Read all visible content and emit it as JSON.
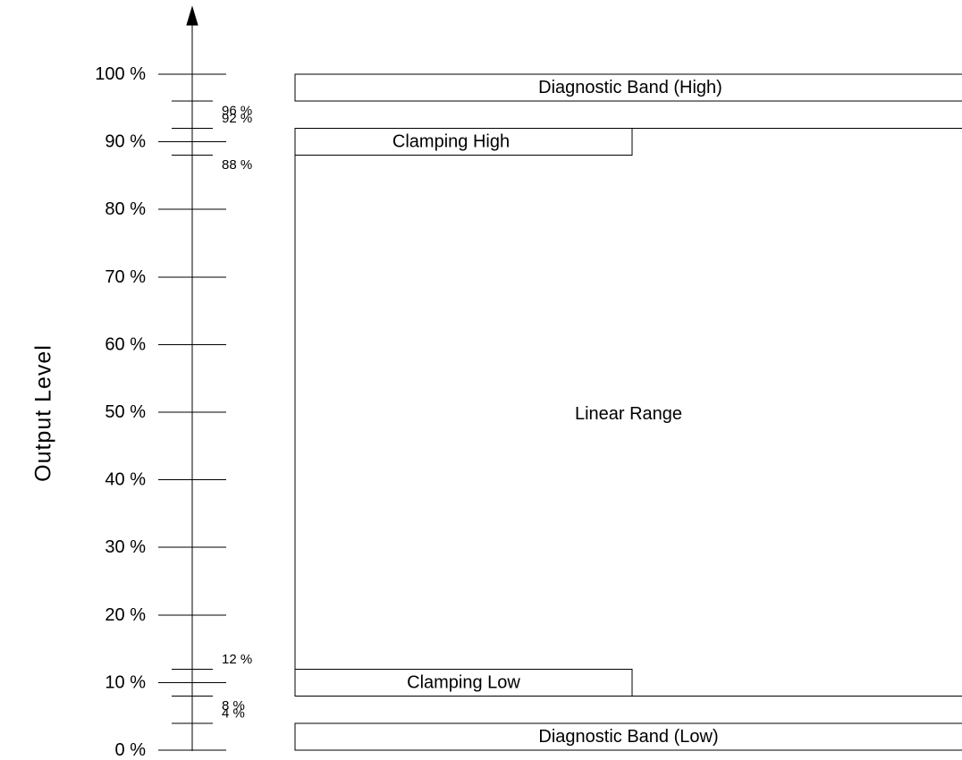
{
  "axis": {
    "title": "Output Level",
    "major_ticks": [
      {
        "value": 100,
        "label": "100 %"
      },
      {
        "value": 90,
        "label": "90 %"
      },
      {
        "value": 80,
        "label": "80 %"
      },
      {
        "value": 70,
        "label": "70 %"
      },
      {
        "value": 60,
        "label": "60 %"
      },
      {
        "value": 50,
        "label": "50 %"
      },
      {
        "value": 40,
        "label": "40 %"
      },
      {
        "value": 30,
        "label": "30 %"
      },
      {
        "value": 20,
        "label": "20 %"
      },
      {
        "value": 10,
        "label": "10 %"
      },
      {
        "value": 0,
        "label": "0 %"
      }
    ],
    "minor_ticks": [
      {
        "value": 96,
        "label": "96 %"
      },
      {
        "value": 92,
        "label": "92 %"
      },
      {
        "value": 88,
        "label": "88 %"
      },
      {
        "value": 12,
        "label": "12 %"
      },
      {
        "value": 8,
        "label": "8 %"
      },
      {
        "value": 4,
        "label": "4 %"
      }
    ]
  },
  "regions": [
    {
      "id": "diagnostic-band-high",
      "label": "Diagnostic Band (High)",
      "from": 96,
      "to": 100
    },
    {
      "id": "clamping-high",
      "label": "Clamping High",
      "from": 88,
      "to": 92
    },
    {
      "id": "linear-range",
      "label": "Linear Range",
      "from": 8,
      "to": 92
    },
    {
      "id": "clamping-low",
      "label": "Clamping Low",
      "from": 8,
      "to": 12
    },
    {
      "id": "diagnostic-band-low",
      "label": "Diagnostic Band (Low)",
      "from": 0,
      "to": 4
    }
  ]
}
